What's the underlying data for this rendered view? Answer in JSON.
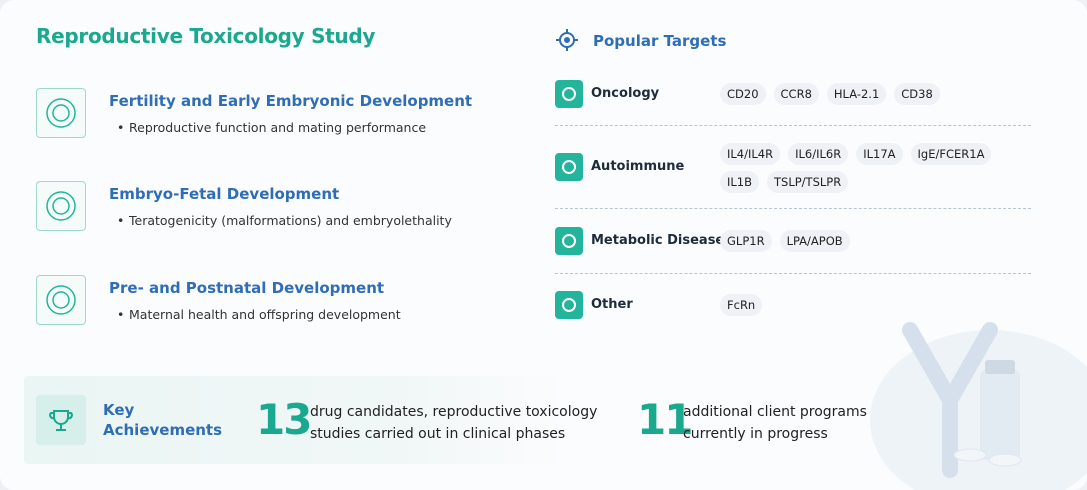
{
  "header": {
    "title": "Reproductive Toxicology Study"
  },
  "studies": [
    {
      "title": "Fertility and Early Embryonic Development",
      "bullet": "Reproductive function and mating performance"
    },
    {
      "title": "Embryo-Fetal Development",
      "bullet": "Teratogenicity (malformations) and embryolethality"
    },
    {
      "title": "Pre- and Postnatal Development",
      "bullet": "Maternal health and offspring development"
    }
  ],
  "targets": {
    "title": "Popular Targets",
    "categories": [
      {
        "name": "Oncology",
        "tags": [
          "CD20",
          "CCR8",
          "HLA-2.1",
          "CD38"
        ]
      },
      {
        "name": "Autoimmune",
        "tags": [
          "IL4/IL4R",
          "IL6/IL6R",
          "IL17A",
          "IgE/FCER1A",
          "IL1B",
          "TSLP/TSLPR"
        ]
      },
      {
        "name": "Metabolic Diseases",
        "tags": [
          "GLP1R",
          "LPA/APOB"
        ]
      },
      {
        "name": "Other",
        "tags": [
          "FcRn"
        ]
      }
    ]
  },
  "achievements": {
    "title": "Key Achievements",
    "items": [
      {
        "number": 13,
        "text": "drug candidates, reproductive toxicology studies carried out in clinical phases"
      },
      {
        "number": 11,
        "text": "additional client programs currently in progress"
      }
    ]
  }
}
